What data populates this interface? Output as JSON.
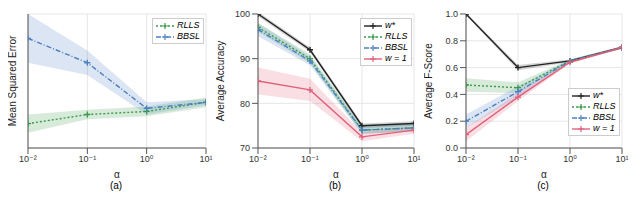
{
  "chart_data": [
    {
      "type": "line",
      "title": "(a)",
      "x_label": "α",
      "y_label": "Mean Squared Error",
      "x": [
        0.01,
        0.1,
        1,
        10
      ],
      "xlim": [
        0.01,
        10
      ],
      "xticks": [
        {
          "value": 0.01,
          "label": "10⁻²"
        },
        {
          "value": 0.1,
          "label": "10⁻¹"
        },
        {
          "value": 1,
          "label": "10⁰"
        },
        {
          "value": 10,
          "label": "10¹"
        }
      ],
      "ylim": [
        0,
        0.22
      ],
      "log": "x",
      "grid": true,
      "legend": "upper right",
      "tick_labels": "x",
      "series": [
        {
          "name": "RLLS",
          "color": "#3a9a4a",
          "marker": "plus",
          "line_style": "dotted",
          "values": [
            0.04,
            0.055,
            0.06,
            0.075
          ],
          "error": [
            0.015,
            0.008,
            0.008,
            0.008
          ]
        },
        {
          "name": "BBSL",
          "color": "#4a7fc1",
          "marker": "plus",
          "line_style": "dashdot",
          "values": [
            0.18,
            0.14,
            0.065,
            0.075
          ],
          "error": [
            0.04,
            0.02,
            0.01,
            0.005
          ]
        }
      ]
    },
    {
      "type": "line",
      "title": "(b)",
      "x_label": "α",
      "y_label": "Average Accuracy",
      "x": [
        0.01,
        0.1,
        1,
        10
      ],
      "xlim": [
        0.01,
        10
      ],
      "xticks": [
        {
          "value": 0.01,
          "label": "10⁻²"
        },
        {
          "value": 0.1,
          "label": "10⁻¹"
        },
        {
          "value": 1,
          "label": "10⁰"
        },
        {
          "value": 10,
          "label": "10¹"
        }
      ],
      "ylim": [
        70,
        100
      ],
      "yticks": [
        70,
        80,
        90,
        100
      ],
      "log": "x",
      "grid": true,
      "legend": "upper right",
      "series": [
        {
          "name": "w*",
          "color": "#222222",
          "marker": "plus",
          "line_style": "solid",
          "values": [
            100,
            92,
            75,
            75.5
          ],
          "error": [
            0.5,
            0.5,
            0.5,
            0.5
          ]
        },
        {
          "name": "RLLS",
          "color": "#3a9a4a",
          "marker": "plus",
          "line_style": "dotted",
          "values": [
            97,
            90,
            74,
            74.5
          ],
          "error": [
            1,
            1,
            0.8,
            0.8
          ]
        },
        {
          "name": "BBSL",
          "color": "#4a7fc1",
          "marker": "plus",
          "line_style": "dashdot",
          "values": [
            96.5,
            89.5,
            74,
            74.5
          ],
          "error": [
            1.5,
            1,
            0.8,
            0.8
          ]
        },
        {
          "name": "w = 1",
          "color": "#e0607a",
          "marker": "plus",
          "line_style": "solid",
          "values": [
            85,
            83,
            72.5,
            74
          ],
          "error": [
            3,
            2.5,
            1,
            0.8
          ]
        }
      ]
    },
    {
      "type": "line",
      "title": "(c)",
      "x_label": "α",
      "y_label": "Average F-Score",
      "x": [
        0.01,
        0.1,
        1,
        10
      ],
      "xlim": [
        0.01,
        10
      ],
      "xticks": [
        {
          "value": 0.01,
          "label": "10⁻²"
        },
        {
          "value": 0.1,
          "label": "10⁻¹"
        },
        {
          "value": 1,
          "label": "10⁰"
        },
        {
          "value": 10,
          "label": "10¹"
        }
      ],
      "ylim": [
        0,
        1
      ],
      "yticks": [
        {
          "value": 0,
          "label": "0.0"
        },
        {
          "value": 0.2,
          "label": "0.2"
        },
        {
          "value": 0.4,
          "label": "0.4"
        },
        {
          "value": 0.6,
          "label": "0.6"
        },
        {
          "value": 0.8,
          "label": "0.8"
        },
        {
          "value": 1,
          "label": "1.0"
        }
      ],
      "log": "x",
      "grid": true,
      "legend": "lower right",
      "series": [
        {
          "name": "w*",
          "color": "#222222",
          "marker": "plus",
          "line_style": "solid",
          "values": [
            1.0,
            0.6,
            0.65,
            0.75
          ],
          "error": [
            0.01,
            0.02,
            0.01,
            0.01
          ]
        },
        {
          "name": "RLLS",
          "color": "#3a9a4a",
          "marker": "plus",
          "line_style": "dotted",
          "values": [
            0.47,
            0.45,
            0.65,
            0.75
          ],
          "error": [
            0.05,
            0.04,
            0.01,
            0.01
          ]
        },
        {
          "name": "BBSL",
          "color": "#4a7fc1",
          "marker": "plus",
          "line_style": "dashdot",
          "values": [
            0.2,
            0.42,
            0.65,
            0.75
          ],
          "error": [
            0.05,
            0.04,
            0.01,
            0.01
          ]
        },
        {
          "name": "w = 1",
          "color": "#e0607a",
          "marker": "plus",
          "line_style": "solid",
          "values": [
            0.1,
            0.38,
            0.64,
            0.75
          ],
          "error": [
            0.05,
            0.03,
            0.01,
            0.01
          ]
        }
      ]
    }
  ]
}
